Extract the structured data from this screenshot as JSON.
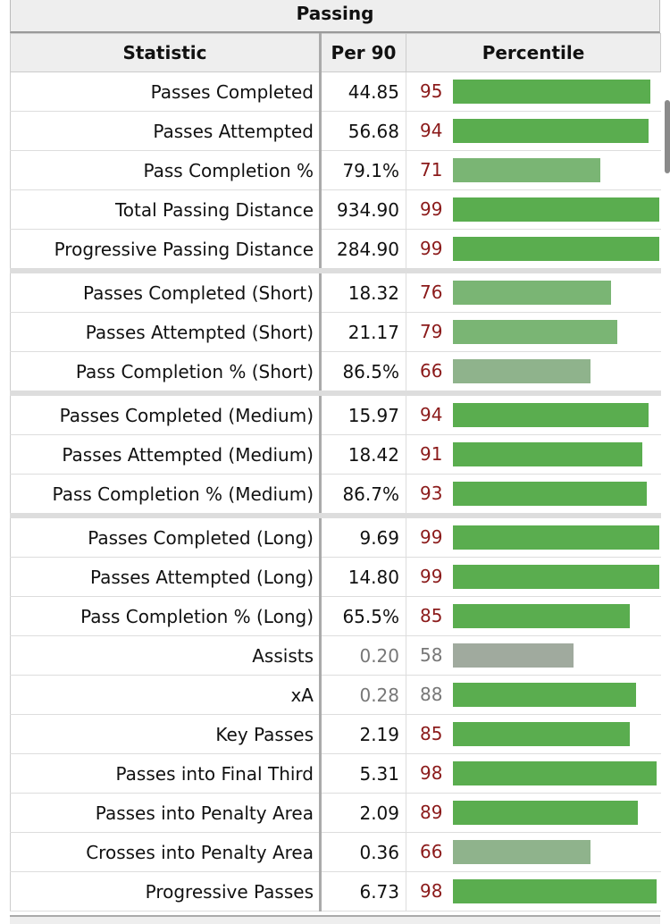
{
  "table_title": "Passing",
  "headers": {
    "statistic": "Statistic",
    "per90": "Per 90",
    "percentile": "Percentile"
  },
  "colors": {
    "strong": "#5aad4f",
    "medium": "#7ab574",
    "weak": "#8fb38c",
    "muted": "#a0aa9e"
  },
  "rows": [
    {
      "name": "Passes Completed",
      "per90": "44.85",
      "percentile": 95
    },
    {
      "name": "Passes Attempted",
      "per90": "56.68",
      "percentile": 94
    },
    {
      "name": "Pass Completion %",
      "per90": "79.1%",
      "percentile": 71
    },
    {
      "name": "Total Passing Distance",
      "per90": "934.90",
      "percentile": 99
    },
    {
      "name": "Progressive Passing Distance",
      "per90": "284.90",
      "percentile": 99
    },
    {
      "name": "Passes Completed (Short)",
      "per90": "18.32",
      "percentile": 76,
      "group_start": true
    },
    {
      "name": "Passes Attempted (Short)",
      "per90": "21.17",
      "percentile": 79
    },
    {
      "name": "Pass Completion % (Short)",
      "per90": "86.5%",
      "percentile": 66
    },
    {
      "name": "Passes Completed (Medium)",
      "per90": "15.97",
      "percentile": 94,
      "group_start": true
    },
    {
      "name": "Passes Attempted (Medium)",
      "per90": "18.42",
      "percentile": 91
    },
    {
      "name": "Pass Completion % (Medium)",
      "per90": "86.7%",
      "percentile": 93
    },
    {
      "name": "Passes Completed (Long)",
      "per90": "9.69",
      "percentile": 99,
      "group_start": true
    },
    {
      "name": "Passes Attempted (Long)",
      "per90": "14.80",
      "percentile": 99
    },
    {
      "name": "Pass Completion % (Long)",
      "per90": "65.5%",
      "percentile": 85
    },
    {
      "name": "Assists",
      "per90": "0.20",
      "percentile": 58,
      "muted": true
    },
    {
      "name": "xA",
      "per90": "0.28",
      "percentile": 88,
      "muted": true
    },
    {
      "name": "Key Passes",
      "per90": "2.19",
      "percentile": 85
    },
    {
      "name": "Passes into Final Third",
      "per90": "5.31",
      "percentile": 98
    },
    {
      "name": "Passes into Penalty Area",
      "per90": "2.09",
      "percentile": 89
    },
    {
      "name": "Crosses into Penalty Area",
      "per90": "0.36",
      "percentile": 66
    },
    {
      "name": "Progressive Passes",
      "per90": "6.73",
      "percentile": 98
    }
  ]
}
